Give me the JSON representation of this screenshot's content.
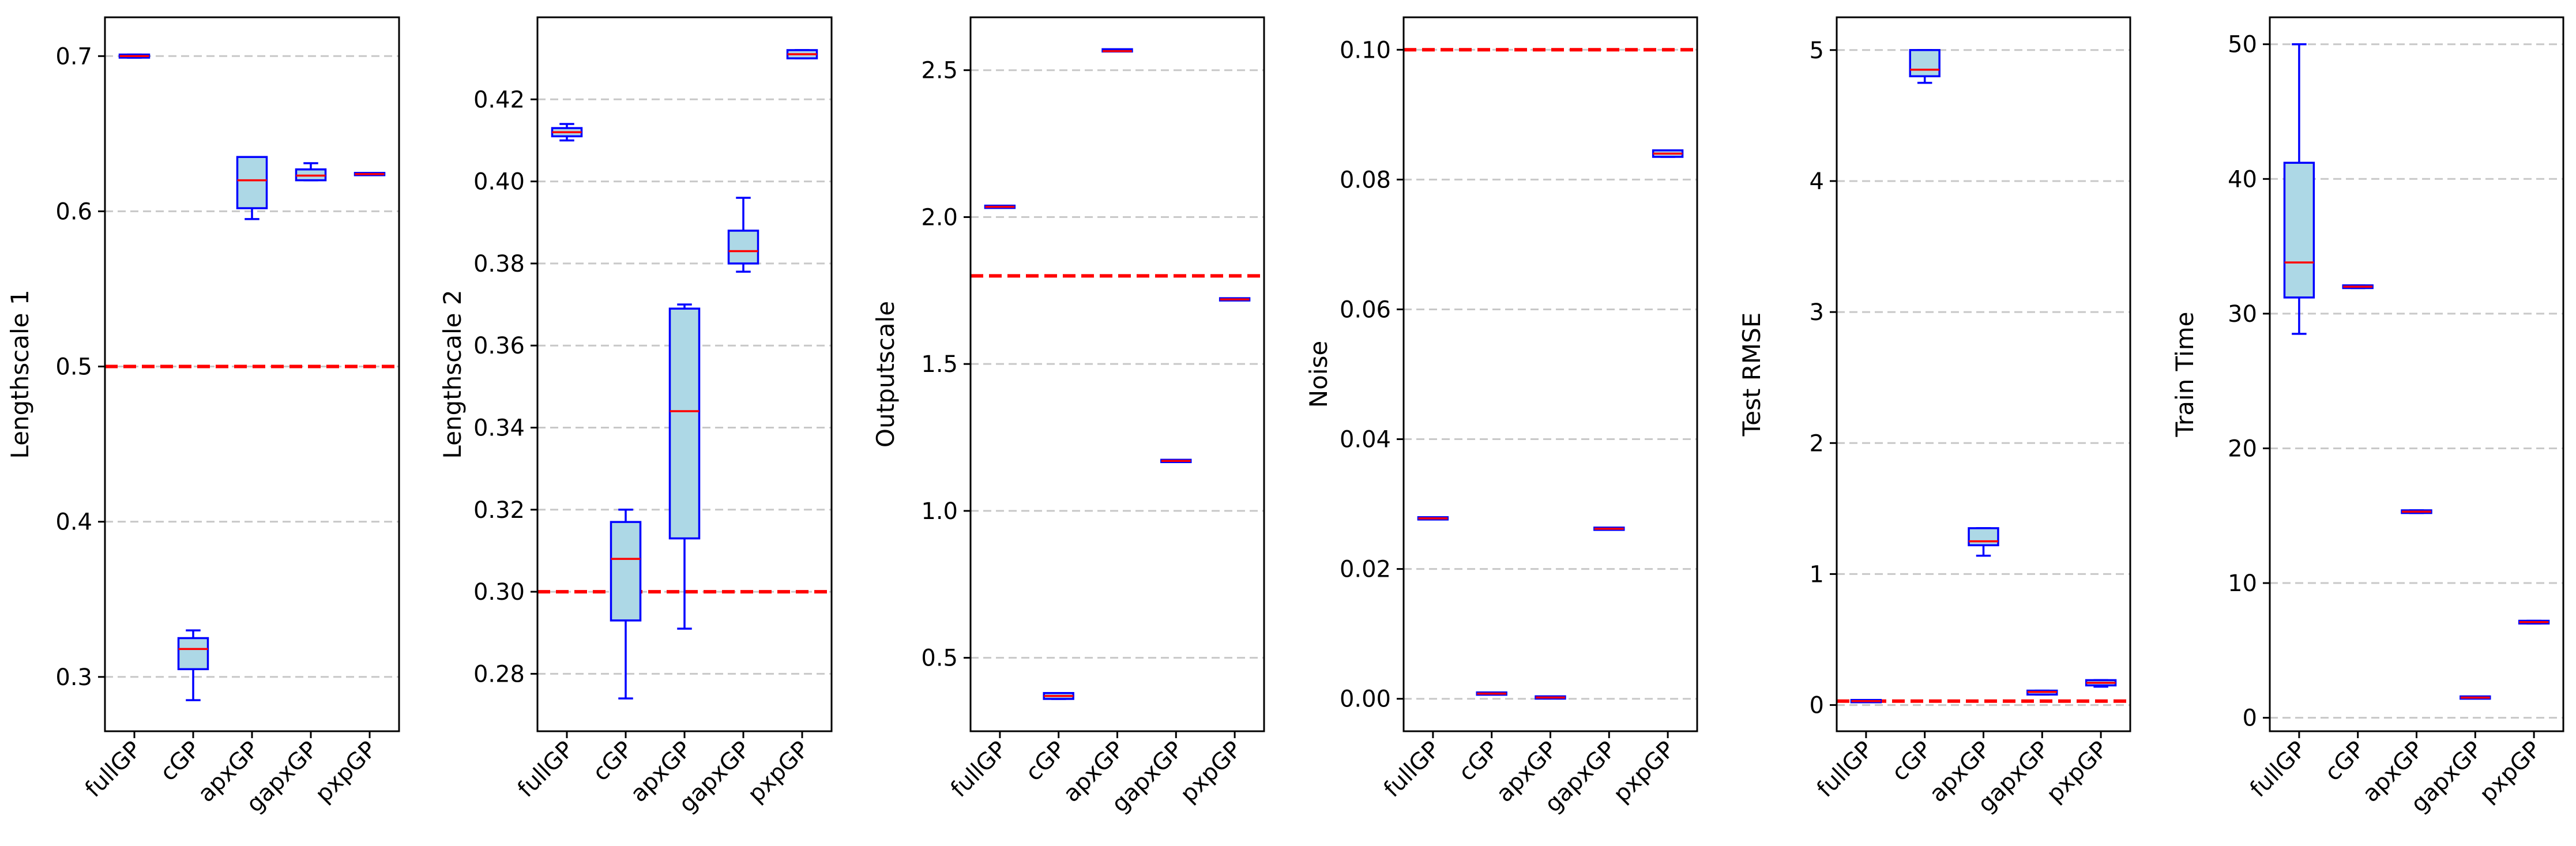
{
  "colors": {
    "box_fill": "#add8e6",
    "box_edge": "#0000ff",
    "median": "#ff0000",
    "reference_line": "#ff0000",
    "grid": "#c8c8c8",
    "axes": "#000000"
  },
  "chart_data": [
    {
      "type": "box",
      "ylabel": "Lengthscale 1",
      "categories": [
        "fullGP",
        "cGP",
        "apxGP",
        "gapxGP",
        "pxpGP"
      ],
      "ylim": [
        0.265,
        0.725
      ],
      "yticks": [
        0.3,
        0.4,
        0.5,
        0.6,
        0.7
      ],
      "ytick_labels": [
        "0.3",
        "0.4",
        "0.5",
        "0.6",
        "0.7"
      ],
      "grid": "y-dashed",
      "reference_line": 0.5,
      "boxes": [
        {
          "whislo": 0.699,
          "q1": 0.699,
          "med": 0.7,
          "q3": 0.701,
          "whishi": 0.701
        },
        {
          "whislo": 0.285,
          "q1": 0.305,
          "med": 0.318,
          "q3": 0.325,
          "whishi": 0.33
        },
        {
          "whislo": 0.595,
          "q1": 0.602,
          "med": 0.62,
          "q3": 0.635,
          "whishi": 0.635
        },
        {
          "whislo": 0.62,
          "q1": 0.62,
          "med": 0.623,
          "q3": 0.627,
          "whishi": 0.631
        },
        {
          "whislo": 0.624,
          "q1": 0.624,
          "med": 0.624,
          "q3": 0.624,
          "whishi": 0.624
        }
      ]
    },
    {
      "type": "box",
      "ylabel": "Lengthscale 2",
      "categories": [
        "fullGP",
        "cGP",
        "apxGP",
        "gapxGP",
        "pxpGP"
      ],
      "ylim": [
        0.266,
        0.44
      ],
      "yticks": [
        0.28,
        0.3,
        0.32,
        0.34,
        0.36,
        0.38,
        0.4,
        0.42
      ],
      "ytick_labels": [
        "0.28",
        "0.30",
        "0.32",
        "0.34",
        "0.36",
        "0.38",
        "0.40",
        "0.42"
      ],
      "grid": "y-dashed",
      "reference_line": 0.3,
      "boxes": [
        {
          "whislo": 0.41,
          "q1": 0.411,
          "med": 0.412,
          "q3": 0.413,
          "whishi": 0.414
        },
        {
          "whislo": 0.274,
          "q1": 0.293,
          "med": 0.308,
          "q3": 0.317,
          "whishi": 0.32
        },
        {
          "whislo": 0.291,
          "q1": 0.313,
          "med": 0.344,
          "q3": 0.369,
          "whishi": 0.37
        },
        {
          "whislo": 0.378,
          "q1": 0.38,
          "med": 0.383,
          "q3": 0.388,
          "whishi": 0.396
        },
        {
          "whislo": 0.43,
          "q1": 0.43,
          "med": 0.431,
          "q3": 0.432,
          "whishi": 0.432
        }
      ]
    },
    {
      "type": "box",
      "ylabel": "Outputscale",
      "categories": [
        "fullGP",
        "cGP",
        "apxGP",
        "gapxGP",
        "pxpGP"
      ],
      "ylim": [
        0.25,
        2.68
      ],
      "yticks": [
        0.5,
        1.0,
        1.5,
        2.0,
        2.5
      ],
      "ytick_labels": [
        "0.5",
        "1.0",
        "1.5",
        "2.0",
        "2.5"
      ],
      "grid": "y-dashed",
      "reference_line": 1.8,
      "boxes": [
        {
          "whislo": 2.035,
          "q1": 2.035,
          "med": 2.035,
          "q3": 2.035,
          "whishi": 2.035
        },
        {
          "whislo": 0.36,
          "q1": 0.36,
          "med": 0.37,
          "q3": 0.38,
          "whishi": 0.38
        },
        {
          "whislo": 2.565,
          "q1": 2.565,
          "med": 2.565,
          "q3": 2.57,
          "whishi": 2.57
        },
        {
          "whislo": 1.17,
          "q1": 1.17,
          "med": 1.17,
          "q3": 1.17,
          "whishi": 1.17
        },
        {
          "whislo": 1.72,
          "q1": 1.72,
          "med": 1.72,
          "q3": 1.72,
          "whishi": 1.72
        }
      ]
    },
    {
      "type": "box",
      "ylabel": "Noise",
      "categories": [
        "fullGP",
        "cGP",
        "apxGP",
        "gapxGP",
        "pxpGP"
      ],
      "ylim": [
        -0.005,
        0.105
      ],
      "yticks": [
        0.0,
        0.02,
        0.04,
        0.06,
        0.08,
        0.1
      ],
      "ytick_labels": [
        "0.00",
        "0.02",
        "0.04",
        "0.06",
        "0.08",
        "0.10"
      ],
      "grid": "y-dashed",
      "reference_line": 0.1,
      "boxes": [
        {
          "whislo": 0.0278,
          "q1": 0.0278,
          "med": 0.0278,
          "q3": 0.0278,
          "whishi": 0.0278
        },
        {
          "whislo": 0.0008,
          "q1": 0.0008,
          "med": 0.0008,
          "q3": 0.0008,
          "whishi": 0.0008
        },
        {
          "whislo": 0.0002,
          "q1": 0.0002,
          "med": 0.0002,
          "q3": 0.0002,
          "whishi": 0.0002
        },
        {
          "whislo": 0.0262,
          "q1": 0.0262,
          "med": 0.0262,
          "q3": 0.0262,
          "whishi": 0.0262
        },
        {
          "whislo": 0.0835,
          "q1": 0.0835,
          "med": 0.084,
          "q3": 0.0845,
          "whishi": 0.0845
        }
      ]
    },
    {
      "type": "box",
      "ylabel": "Test RMSE",
      "categories": [
        "fullGP",
        "cGP",
        "apxGP",
        "gapxGP",
        "pxpGP"
      ],
      "ylim": [
        -0.2,
        5.25
      ],
      "yticks": [
        0,
        1,
        2,
        3,
        4,
        5
      ],
      "ytick_labels": [
        "0",
        "1",
        "2",
        "3",
        "4",
        "5"
      ],
      "grid": "y-dashed",
      "reference_line": 0.03,
      "boxes": [
        {
          "whislo": 0.03,
          "q1": 0.03,
          "med": 0.03,
          "q3": 0.03,
          "whishi": 0.03
        },
        {
          "whislo": 4.75,
          "q1": 4.8,
          "med": 4.85,
          "q3": 5.0,
          "whishi": 5.0
        },
        {
          "whislo": 1.14,
          "q1": 1.22,
          "med": 1.25,
          "q3": 1.35,
          "whishi": 1.35
        },
        {
          "whislo": 0.08,
          "q1": 0.08,
          "med": 0.1,
          "q3": 0.11,
          "whishi": 0.11
        },
        {
          "whislo": 0.14,
          "q1": 0.15,
          "med": 0.17,
          "q3": 0.19,
          "whishi": 0.19
        }
      ]
    },
    {
      "type": "box",
      "ylabel": "Train Time",
      "categories": [
        "fullGP",
        "cGP",
        "apxGP",
        "gapxGP",
        "pxpGP"
      ],
      "ylim": [
        -1.0,
        52.0
      ],
      "yticks": [
        0,
        10,
        20,
        30,
        40,
        50
      ],
      "ytick_labels": [
        "0",
        "10",
        "20",
        "30",
        "40",
        "50"
      ],
      "grid": "y-dashed",
      "reference_line": null,
      "boxes": [
        {
          "whislo": 28.5,
          "q1": 31.2,
          "med": 33.8,
          "q3": 41.2,
          "whishi": 50.0
        },
        {
          "whislo": 31.9,
          "q1": 31.9,
          "med": 32.0,
          "q3": 32.1,
          "whishi": 32.1
        },
        {
          "whislo": 15.2,
          "q1": 15.2,
          "med": 15.3,
          "q3": 15.4,
          "whishi": 15.4
        },
        {
          "whislo": 1.5,
          "q1": 1.5,
          "med": 1.5,
          "q3": 1.5,
          "whishi": 1.5
        },
        {
          "whislo": 7.0,
          "q1": 7.0,
          "med": 7.1,
          "q3": 7.2,
          "whishi": 7.2
        }
      ]
    }
  ]
}
